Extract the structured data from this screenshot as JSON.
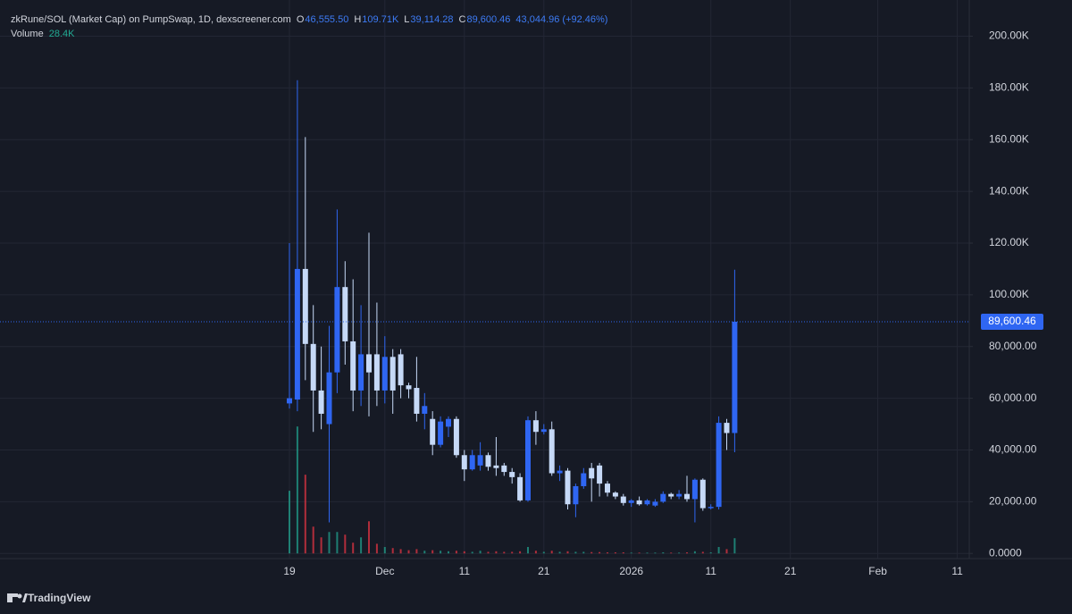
{
  "chart_data": {
    "type": "candlestick",
    "title": "zkRune/SOL (Market Cap) on PumpSwap, 1D, dexscreener.com",
    "ohlc_letters": [
      "O",
      "H",
      "L",
      "C"
    ],
    "ohlc_labels": [
      "46,555.50",
      "109.71K",
      "39,114.28",
      "89,600.46"
    ],
    "change_label": "43,044.96 (+92.46%)",
    "categories": [
      "19",
      null,
      null,
      null,
      null,
      null,
      null,
      null,
      null,
      null,
      null,
      null,
      "Dec",
      null,
      null,
      null,
      null,
      null,
      null,
      null,
      null,
      null,
      "11",
      null,
      null,
      null,
      null,
      null,
      null,
      null,
      null,
      null,
      "21",
      null,
      null,
      null,
      null,
      null,
      null,
      null,
      null,
      null,
      null,
      "2026",
      null,
      null,
      null,
      null,
      null,
      null,
      null,
      null,
      null,
      "11",
      null,
      null,
      null,
      null,
      null,
      null,
      null,
      null,
      null,
      "21",
      null,
      null,
      null,
      null,
      null,
      null,
      null,
      null,
      null,
      null,
      "Feb",
      null,
      null,
      null,
      null,
      null,
      null,
      null,
      null,
      null,
      "11"
    ],
    "open": [
      58000,
      59500,
      110000,
      81000,
      63000,
      50000,
      70000,
      103000,
      82000,
      63000,
      77000,
      77000,
      63000,
      76000,
      77000,
      65000,
      64000,
      54000,
      52000,
      42000,
      49000,
      52000,
      38000,
      32500,
      34000,
      38000,
      34000,
      34000,
      31500,
      29500,
      20500,
      51500,
      47000,
      48000,
      31000,
      32000,
      19000,
      26000,
      33000,
      34000,
      27000,
      23500,
      22000,
      19500,
      20500,
      19000,
      18500,
      20000,
      23000,
      22000,
      23000,
      21000,
      28500,
      17500,
      18000,
      50500,
      46555.5,
      null,
      null,
      null,
      null,
      null,
      null,
      null,
      null,
      null,
      null,
      null,
      null,
      null,
      null,
      null,
      null,
      null,
      null,
      null,
      null,
      null,
      null,
      null,
      null,
      null,
      null,
      null,
      null
    ],
    "high": [
      120000,
      183000,
      161000,
      96000,
      80000,
      88000,
      133000,
      113000,
      106000,
      96000,
      124000,
      97000,
      84000,
      79000,
      79000,
      66000,
      76000,
      62000,
      55000,
      53000,
      53000,
      53000,
      40000,
      40000,
      43000,
      39000,
      45000,
      35000,
      33000,
      31000,
      53000,
      55000,
      50000,
      51000,
      34000,
      33000,
      27000,
      33000,
      35000,
      35000,
      28000,
      24000,
      23000,
      21000,
      22000,
      21000,
      21000,
      24000,
      23500,
      24500,
      30000,
      29000,
      29000,
      19000,
      53000,
      52000,
      109710,
      null,
      null,
      null,
      null,
      null,
      null,
      null,
      null,
      null,
      null,
      null,
      null,
      null,
      null,
      null,
      null,
      null,
      null,
      null,
      null,
      null,
      null,
      null,
      null,
      null,
      null,
      null,
      null
    ],
    "low": [
      56000,
      55000,
      67000,
      47000,
      48000,
      12000,
      62000,
      73000,
      55000,
      57000,
      53000,
      57000,
      58000,
      54000,
      60000,
      60000,
      51000,
      48000,
      38000,
      41000,
      45000,
      37000,
      28000,
      32000,
      32000,
      32000,
      30000,
      30000,
      27000,
      20000,
      20000,
      42000,
      46000,
      30000,
      28000,
      17000,
      14000,
      25000,
      20000,
      22000,
      22000,
      21000,
      18500,
      18000,
      18500,
      18500,
      18000,
      19500,
      21000,
      21000,
      20000,
      12000,
      16500,
      17000,
      17000,
      40000,
      39114.28,
      null,
      null,
      null,
      null,
      null,
      null,
      null,
      null,
      null,
      null,
      null,
      null,
      null,
      null,
      null,
      null,
      null,
      null,
      null,
      null,
      null,
      null,
      null,
      null,
      null,
      null,
      null,
      null
    ],
    "close": [
      60000,
      110000,
      81000,
      63000,
      54000,
      70000,
      103000,
      82000,
      63000,
      77000,
      70000,
      63000,
      76000,
      63000,
      65000,
      63500,
      54000,
      57000,
      42000,
      51000,
      52000,
      38000,
      32500,
      38000,
      38000,
      33500,
      33000,
      31500,
      29500,
      20500,
      51500,
      47000,
      48000,
      31000,
      32000,
      19000,
      26000,
      31000,
      29000,
      27000,
      23500,
      22000,
      19500,
      20500,
      19000,
      20500,
      20000,
      23000,
      22000,
      23000,
      21000,
      28500,
      17500,
      18000,
      50500,
      46555.5,
      89600.46,
      null,
      null,
      null,
      null,
      null,
      null,
      null,
      null,
      null,
      null,
      null,
      null,
      null,
      null,
      null,
      null,
      null,
      null,
      null,
      null,
      null,
      null,
      null,
      null,
      null,
      null,
      null,
      null
    ],
    "volume": {
      "name": "Volume",
      "value_label": "28.4K",
      "values": [
        117000,
        237000,
        147000,
        50000,
        30000,
        40000,
        40000,
        35000,
        20000,
        30000,
        60000,
        18000,
        12000,
        10000,
        8000,
        6000,
        8000,
        5000,
        6000,
        5000,
        4000,
        5000,
        4000,
        3000,
        5000,
        3000,
        4000,
        3000,
        3000,
        4000,
        12000,
        5000,
        3000,
        5000,
        3000,
        4000,
        3000,
        3000,
        2500,
        2500,
        2000,
        2000,
        2000,
        1500,
        1500,
        1500,
        1500,
        2000,
        1500,
        1500,
        2000,
        4000,
        3000,
        2000,
        12000,
        8000,
        28400,
        null,
        null,
        null,
        null,
        null,
        null,
        null,
        null,
        null,
        null,
        null,
        null,
        null,
        null,
        null,
        null,
        null,
        null,
        null,
        null,
        null,
        null,
        null,
        null,
        null,
        null,
        null,
        null
      ]
    },
    "colors": {
      "up": "#2f66f2",
      "down": "#c6d9f7",
      "volume_up": "#22ab94",
      "volume_down": "#f23645"
    },
    "ylim": [
      -2000,
      214000
    ],
    "yticks": [
      {
        "value": 0,
        "label": "0.0000"
      },
      {
        "value": 20000,
        "label": "20,000.00"
      },
      {
        "value": 40000,
        "label": "40,000.00"
      },
      {
        "value": 60000,
        "label": "60,000.00"
      },
      {
        "value": 80000,
        "label": "80,000.00"
      },
      {
        "value": 100000,
        "label": "100.00K"
      },
      {
        "value": 120000,
        "label": "120.00K"
      },
      {
        "value": 140000,
        "label": "140.00K"
      },
      {
        "value": 160000,
        "label": "160.00K"
      },
      {
        "value": 180000,
        "label": "180.00K"
      },
      {
        "value": 200000,
        "label": "200.00K"
      }
    ],
    "last_price": {
      "value": 89600.46,
      "label": "89,600.46"
    },
    "grid": true,
    "footer": "TradingView"
  }
}
